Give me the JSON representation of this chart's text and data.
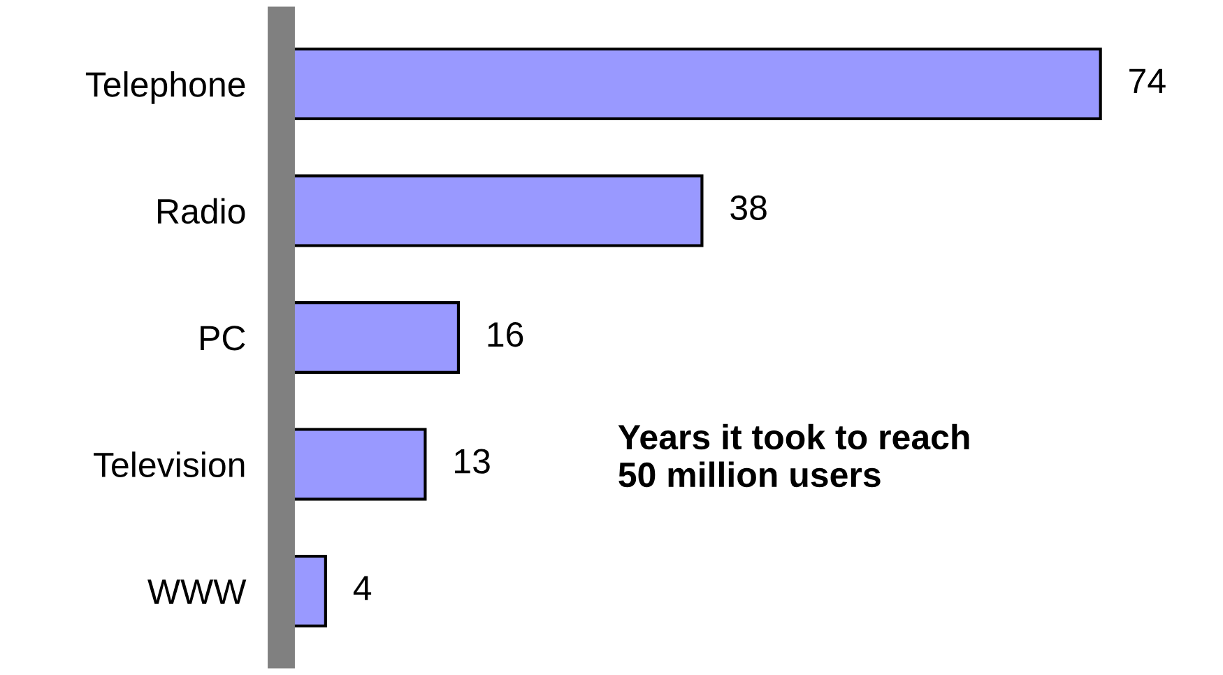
{
  "chart_data": {
    "type": "bar",
    "orientation": "horizontal",
    "categories": [
      "Telephone",
      "Radio",
      "PC",
      "Television",
      "WWW"
    ],
    "values": [
      74,
      38,
      16,
      13,
      4
    ],
    "color": "#9999ff",
    "data_labels": true,
    "tick_labels": "y",
    "grid": false,
    "legend": false,
    "annotations": [
      "Years it took to reach\n50 million users"
    ]
  }
}
